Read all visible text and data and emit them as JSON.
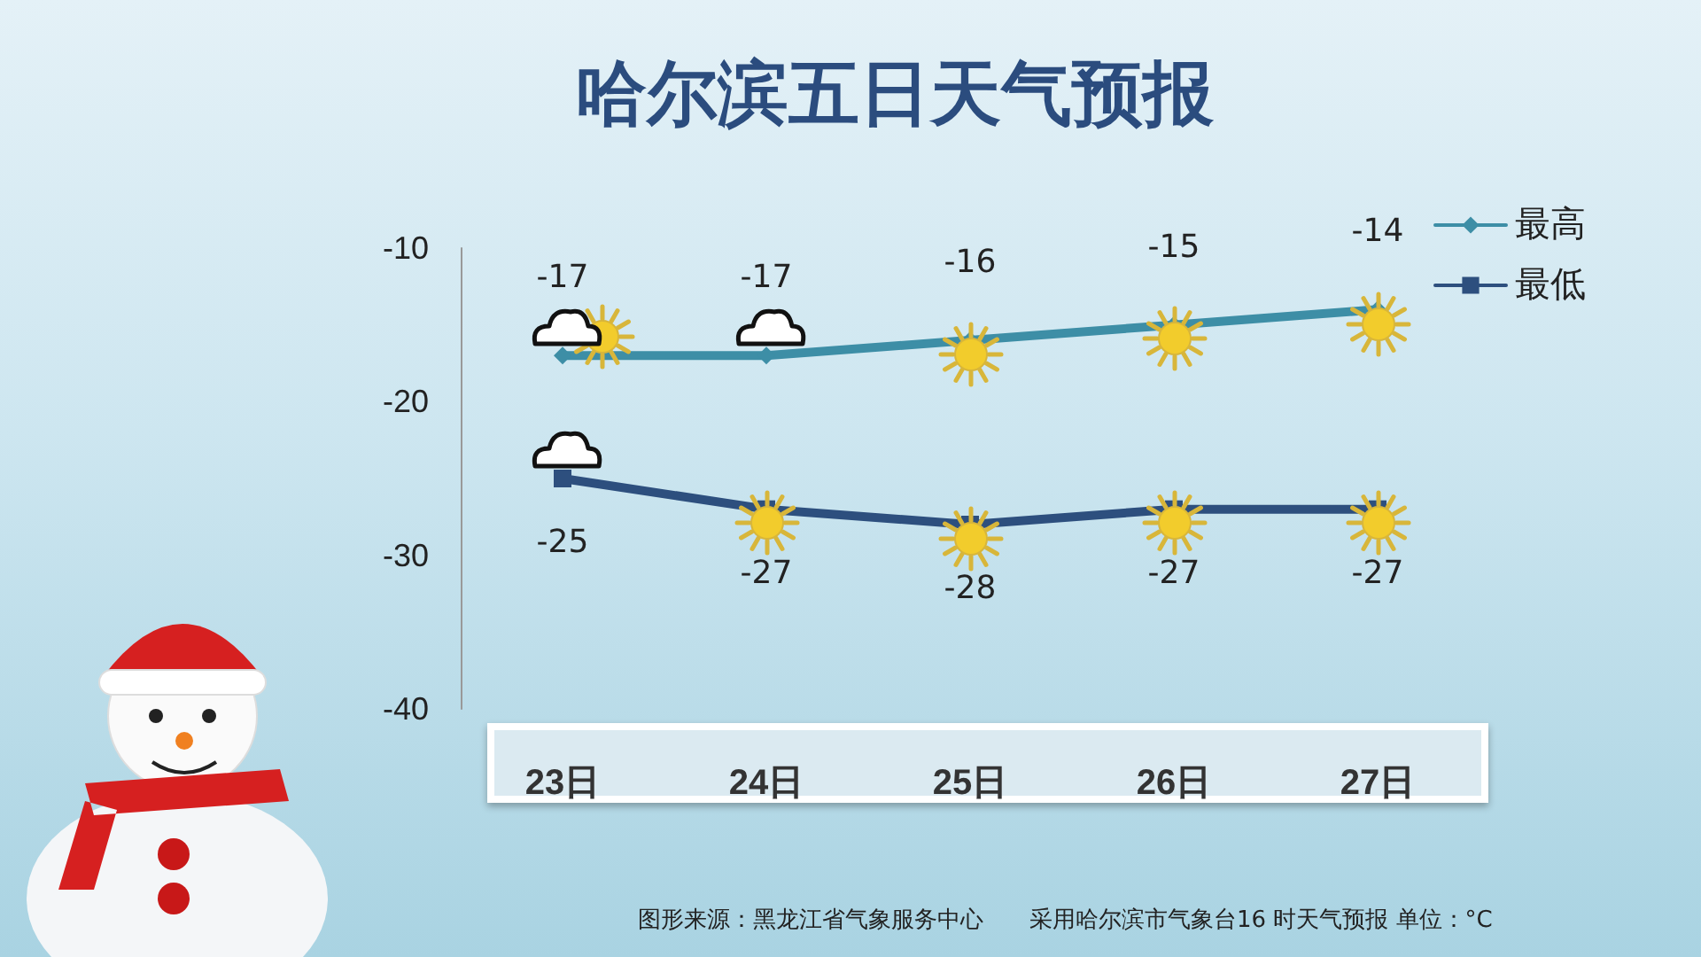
{
  "chart_data": {
    "type": "line",
    "title": "哈尔滨五日天气预报",
    "categories": [
      "23日",
      "24日",
      "25日",
      "26日",
      "27日"
    ],
    "series": [
      {
        "name": "最高",
        "color": "#3d8ea6",
        "values": [
          -17,
          -17,
          -16,
          -15,
          -14
        ],
        "marker": "diamond"
      },
      {
        "name": "最低",
        "color": "#2d4f7e",
        "values": [
          -25,
          -27,
          -28,
          -27,
          -27
        ],
        "marker": "square"
      }
    ],
    "ylim": [
      -40,
      -10
    ],
    "yticks": [
      -10,
      -20,
      -30,
      -40
    ],
    "grid": false,
    "legend": "top right",
    "data_labels": true,
    "annotations": [
      "图形来源：黑龙江省气象服务中心",
      "采用哈尔滨市气象台16 时天气预报 单位：°C"
    ]
  }
}
